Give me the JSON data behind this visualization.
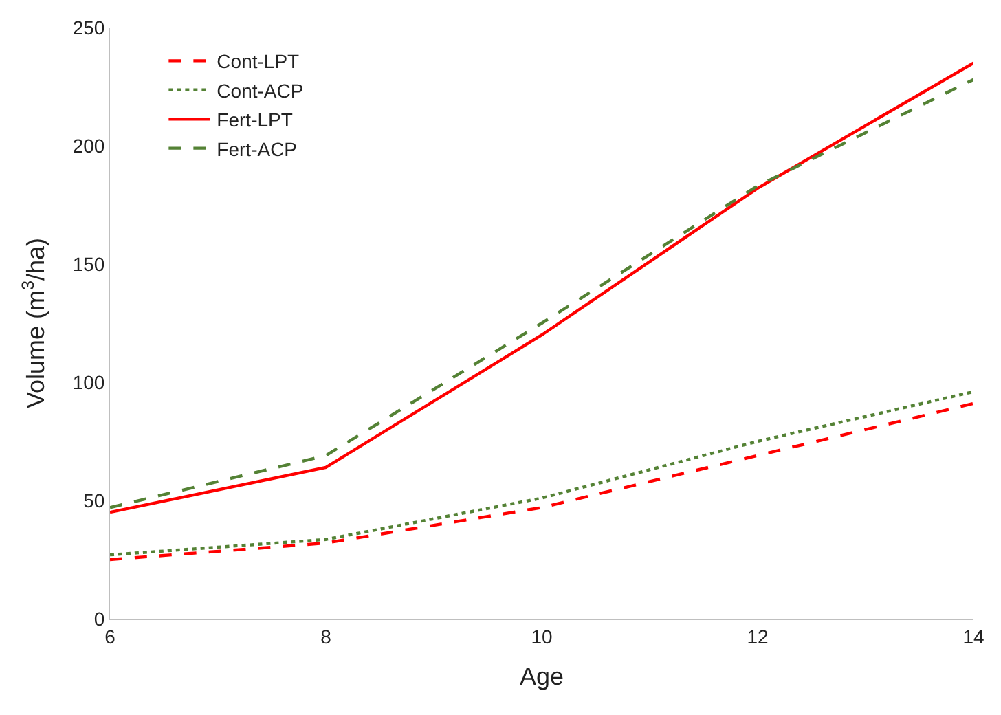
{
  "chart_data": {
    "type": "line",
    "xlabel": "Age",
    "ylabel": "Volume (m$^{3}$/ha)",
    "x": [
      6,
      8,
      10,
      12,
      14
    ],
    "xlim": [
      6,
      14
    ],
    "xticks": [
      6,
      8,
      10,
      12,
      14
    ],
    "ylim": [
      0,
      250
    ],
    "yticks": [
      0,
      50,
      100,
      150,
      200,
      250
    ],
    "grid": false,
    "legend": "top left",
    "marker": "none",
    "series": [
      {
        "name": "Cont-LPT",
        "color": "#ff0000",
        "line_style": "dashed",
        "values": [
          25,
          32,
          47,
          69,
          91
        ]
      },
      {
        "name": "Cont-ACP",
        "color": "#548235",
        "line_style": "dotted",
        "values": [
          27,
          33.5,
          51,
          75,
          96
        ]
      },
      {
        "name": "Fert-LPT",
        "color": "#ff0000",
        "line_style": "solid",
        "values": [
          45,
          64,
          120,
          182,
          235
        ]
      },
      {
        "name": "Fert-ACP",
        "color": "#548235",
        "line_style": "dashed",
        "values": [
          47,
          69,
          125,
          183,
          228
        ]
      }
    ]
  }
}
